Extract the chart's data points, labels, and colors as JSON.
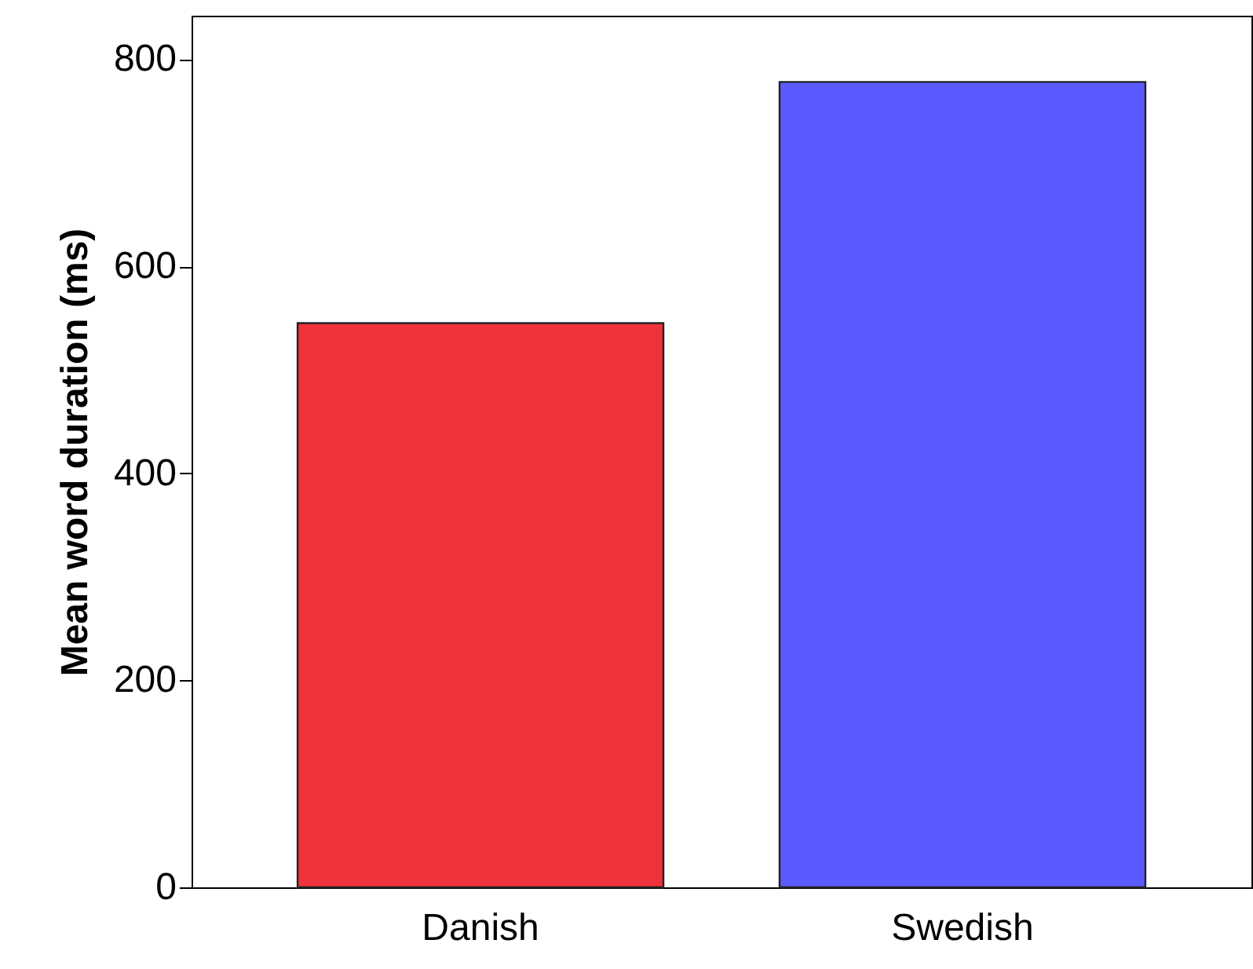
{
  "chart_data": {
    "type": "bar",
    "ylabel": "Mean word duration (ms)",
    "categories": [
      "Danish",
      "Swedish"
    ],
    "values": [
      545,
      778
    ],
    "colors": [
      "#f0323a",
      "#5a5aff"
    ],
    "ylim": [
      0,
      842
    ],
    "yticks": [
      0,
      200,
      400,
      600,
      800
    ],
    "grid": false
  }
}
